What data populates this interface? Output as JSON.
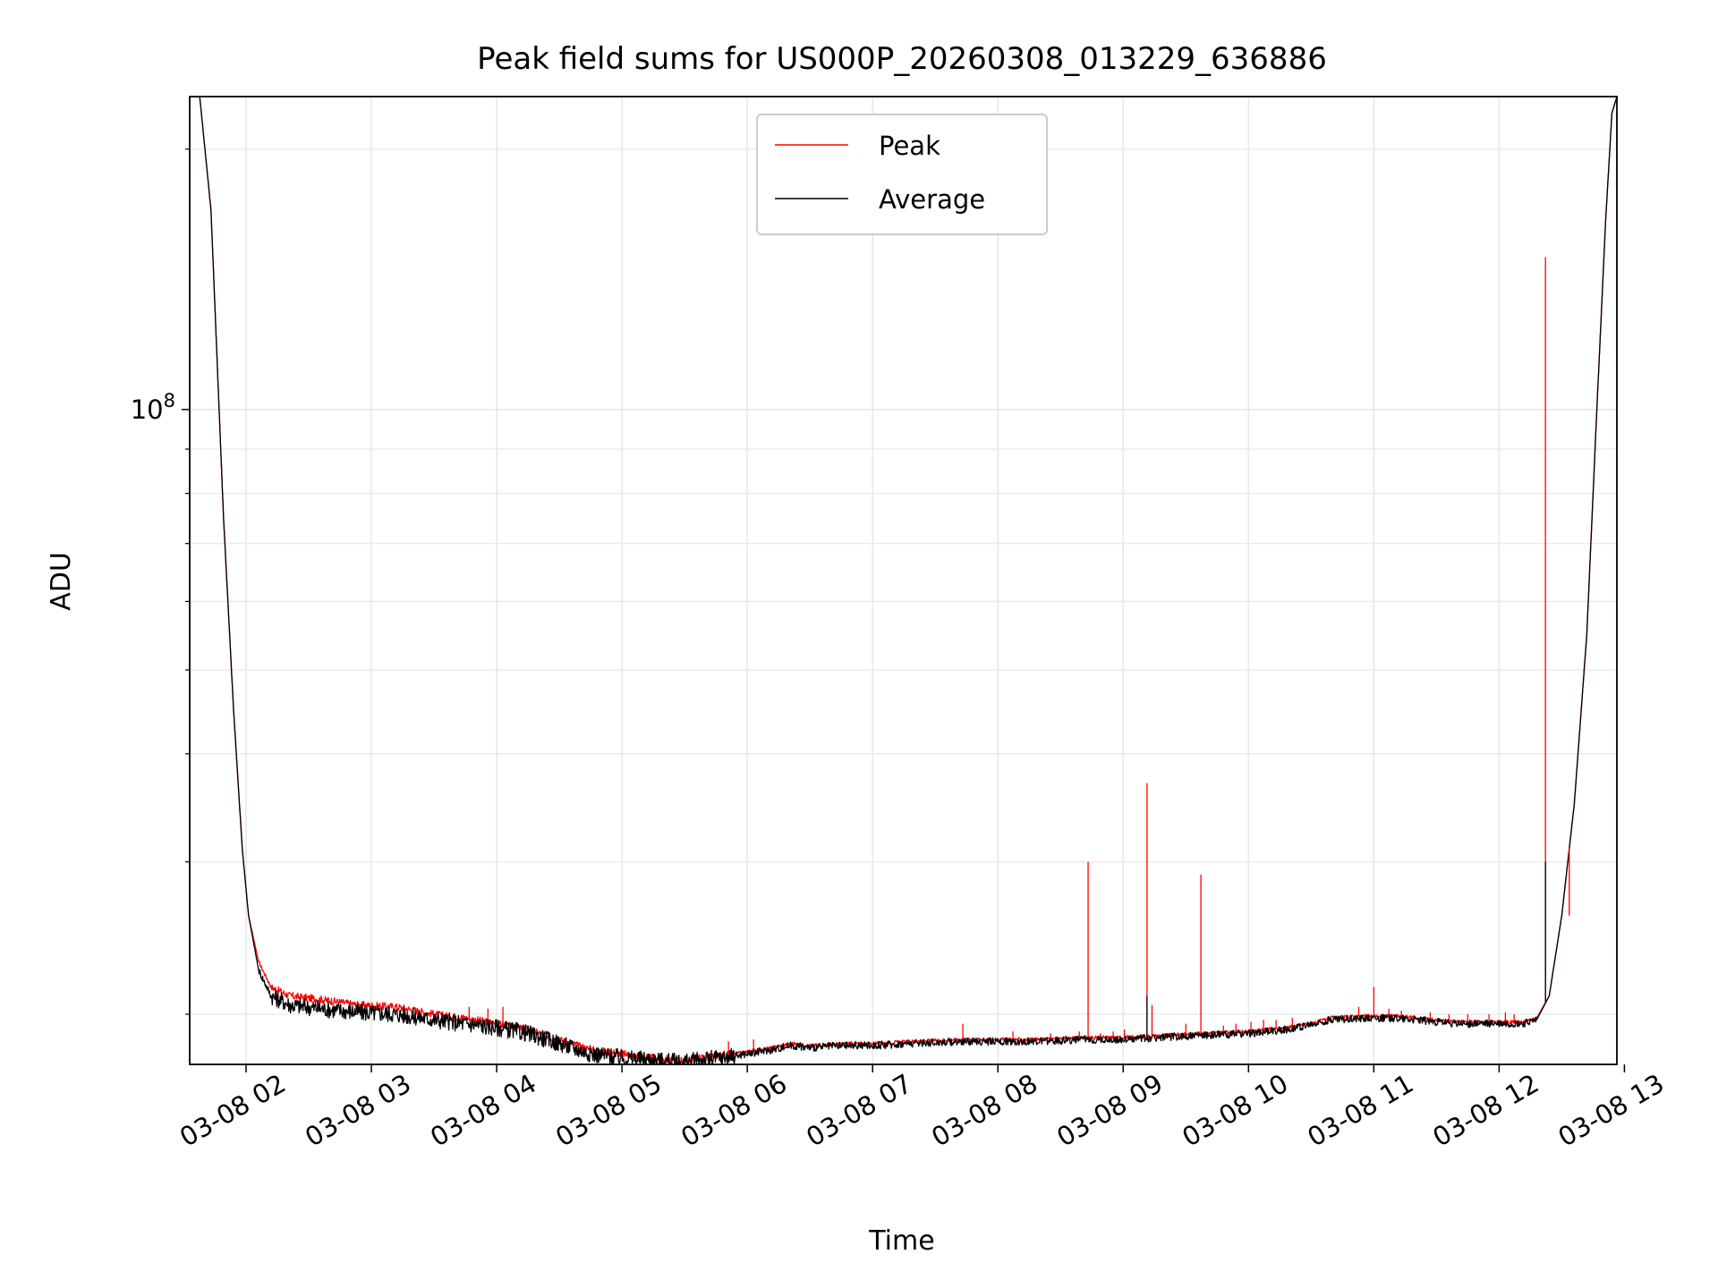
{
  "chart_data": {
    "type": "line",
    "title": "Peak field sums for US000P_20260308_013229_636886",
    "xlabel": "Time",
    "ylabel": "ADU",
    "yscale": "log",
    "ylim": [
      17500000,
      230000000
    ],
    "xlim_hours": [
      1.55,
      12.94
    ],
    "x_tick_labels": [
      "03-08 02",
      "03-08 03",
      "03-08 04",
      "03-08 05",
      "03-08 06",
      "03-08 07",
      "03-08 08",
      "03-08 09",
      "03-08 10",
      "03-08 11",
      "03-08 12",
      "03-08 13"
    ],
    "x_tick_hours": [
      2,
      3,
      4,
      5,
      6,
      7,
      8,
      9,
      10,
      11,
      12,
      13
    ],
    "y_tick": {
      "value": 100000000,
      "base": "10",
      "exponent": "8"
    },
    "y_minor_ticks": [
      20000000,
      30000000,
      40000000,
      50000000,
      60000000,
      70000000,
      80000000,
      90000000,
      200000000
    ],
    "grid": true,
    "legend": {
      "location": "upper center",
      "entries": [
        "Peak",
        "Average"
      ]
    },
    "series": [
      {
        "name": "Peak",
        "color": "#ff0000",
        "x_hours": [
          1.55,
          1.63,
          1.72,
          1.82,
          1.9,
          1.97,
          2.02,
          2.1,
          2.2,
          2.35,
          2.6,
          2.9,
          3.2,
          3.5,
          3.75,
          4.0,
          4.25,
          4.5,
          4.75,
          5.0,
          5.25,
          5.5,
          5.6,
          5.8,
          6.0,
          6.2,
          6.35,
          6.5,
          6.8,
          7.0,
          7.3,
          7.7,
          8.0,
          8.3,
          8.7,
          9.0,
          9.3,
          9.6,
          10.0,
          10.3,
          10.55,
          10.65,
          10.9,
          11.2,
          11.5,
          11.65,
          11.9,
          12.2,
          12.3,
          12.4,
          12.5,
          12.6,
          12.7,
          12.78,
          12.85,
          12.9,
          12.94
        ],
        "y": [
          230000000,
          230000000,
          170000000,
          75000000,
          45000000,
          31000000,
          26000000,
          23000000,
          21500000,
          21000000,
          20800000,
          20500000,
          20400000,
          20000000,
          19800000,
          19500000,
          19200000,
          18700000,
          18200000,
          18000000,
          17800000,
          17700000,
          17800000,
          17900000,
          18100000,
          18300000,
          18500000,
          18400000,
          18500000,
          18500000,
          18600000,
          18700000,
          18700000,
          18700000,
          18800000,
          18800000,
          18900000,
          19000000,
          19100000,
          19300000,
          19600000,
          19800000,
          19900000,
          19900000,
          19700000,
          19600000,
          19600000,
          19600000,
          19800000,
          21000000,
          26000000,
          35000000,
          55000000,
          100000000,
          165000000,
          220000000,
          230000000
        ]
      },
      {
        "name": "Average",
        "color": "#000000",
        "x_hours": [
          1.55,
          1.63,
          1.72,
          1.82,
          1.9,
          1.97,
          2.02,
          2.1,
          2.2,
          2.35,
          2.6,
          2.9,
          3.2,
          3.5,
          3.75,
          4.0,
          4.25,
          4.5,
          4.75,
          5.0,
          5.25,
          5.5,
          5.6,
          5.8,
          6.0,
          6.2,
          6.35,
          6.5,
          6.8,
          7.0,
          7.3,
          7.7,
          8.0,
          8.3,
          8.7,
          9.0,
          9.3,
          9.6,
          10.0,
          10.3,
          10.55,
          10.65,
          10.9,
          11.2,
          11.5,
          11.65,
          11.9,
          12.2,
          12.3,
          12.4,
          12.5,
          12.6,
          12.7,
          12.78,
          12.85,
          12.9,
          12.94
        ],
        "y": [
          230000000,
          230000000,
          170000000,
          75000000,
          45000000,
          31000000,
          26000000,
          22500000,
          21000000,
          20500000,
          20300000,
          20100000,
          20000000,
          19700000,
          19500000,
          19300000,
          19000000,
          18500000,
          18000000,
          17800000,
          17700000,
          17600000,
          17700000,
          17800000,
          18000000,
          18200000,
          18400000,
          18300000,
          18400000,
          18400000,
          18500000,
          18600000,
          18600000,
          18600000,
          18700000,
          18700000,
          18800000,
          18900000,
          19000000,
          19200000,
          19500000,
          19700000,
          19800000,
          19800000,
          19600000,
          19500000,
          19500000,
          19500000,
          19700000,
          21000000,
          26000000,
          35000000,
          55000000,
          100000000,
          165000000,
          220000000,
          230000000
        ]
      }
    ],
    "peak_spikes": [
      {
        "x_hour": 3.78,
        "y": 20400000
      },
      {
        "x_hour": 3.93,
        "y": 20300000
      },
      {
        "x_hour": 4.05,
        "y": 20400000
      },
      {
        "x_hour": 5.85,
        "y": 18600000
      },
      {
        "x_hour": 6.05,
        "y": 18700000
      },
      {
        "x_hour": 7.72,
        "y": 19500000
      },
      {
        "x_hour": 8.12,
        "y": 19100000
      },
      {
        "x_hour": 8.42,
        "y": 19000000
      },
      {
        "x_hour": 8.65,
        "y": 19100000
      },
      {
        "x_hour": 8.72,
        "y": 30000000
      },
      {
        "x_hour": 8.82,
        "y": 19000000
      },
      {
        "x_hour": 8.92,
        "y": 19100000
      },
      {
        "x_hour": 9.01,
        "y": 19200000
      },
      {
        "x_hour": 9.19,
        "y": 37000000
      },
      {
        "x_hour": 9.23,
        "y": 20500000
      },
      {
        "x_hour": 9.5,
        "y": 19500000
      },
      {
        "x_hour": 9.62,
        "y": 29000000
      },
      {
        "x_hour": 9.8,
        "y": 19400000
      },
      {
        "x_hour": 9.9,
        "y": 19500000
      },
      {
        "x_hour": 10.02,
        "y": 19600000
      },
      {
        "x_hour": 10.12,
        "y": 19700000
      },
      {
        "x_hour": 10.22,
        "y": 19700000
      },
      {
        "x_hour": 10.35,
        "y": 19800000
      },
      {
        "x_hour": 10.88,
        "y": 20400000
      },
      {
        "x_hour": 11.0,
        "y": 21500000
      },
      {
        "x_hour": 11.12,
        "y": 20300000
      },
      {
        "x_hour": 11.22,
        "y": 20200000
      },
      {
        "x_hour": 11.45,
        "y": 20100000
      },
      {
        "x_hour": 11.6,
        "y": 20000000
      },
      {
        "x_hour": 11.75,
        "y": 20000000
      },
      {
        "x_hour": 11.92,
        "y": 20000000
      },
      {
        "x_hour": 12.05,
        "y": 20100000
      },
      {
        "x_hour": 12.12,
        "y": 20000000
      },
      {
        "x_hour": 12.37,
        "y": 150000000
      },
      {
        "x_hour": 12.56,
        "y": 26000000
      }
    ],
    "average_spikes": [
      {
        "x_hour": 9.19,
        "y": 21000000
      },
      {
        "x_hour": 12.37,
        "y": 30000000
      }
    ]
  }
}
